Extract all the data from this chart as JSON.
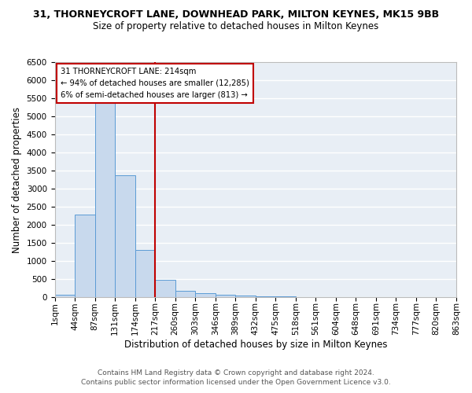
{
  "title_line1": "31, THORNEYCROFT LANE, DOWNHEAD PARK, MILTON KEYNES, MK15 9BB",
  "title_line2": "Size of property relative to detached houses in Milton Keynes",
  "xlabel": "Distribution of detached houses by size in Milton Keynes",
  "ylabel": "Number of detached properties",
  "footnote1": "Contains HM Land Registry data © Crown copyright and database right 2024.",
  "footnote2": "Contains public sector information licensed under the Open Government Licence v3.0.",
  "bin_labels": [
    "1sqm",
    "44sqm",
    "87sqm",
    "131sqm",
    "174sqm",
    "217sqm",
    "260sqm",
    "303sqm",
    "346sqm",
    "389sqm",
    "432sqm",
    "475sqm",
    "518sqm",
    "561sqm",
    "604sqm",
    "648sqm",
    "691sqm",
    "734sqm",
    "777sqm",
    "820sqm",
    "863sqm"
  ],
  "bar_values": [
    75,
    2280,
    5420,
    3380,
    1310,
    470,
    170,
    110,
    75,
    45,
    30,
    15,
    5,
    3,
    2,
    1,
    1,
    1,
    0,
    0
  ],
  "bar_color": "#c8d9ed",
  "bar_edge_color": "#5b9bd5",
  "property_line_bin": 5,
  "annotation_text": "31 THORNEYCROFT LANE: 214sqm\n← 94% of detached houses are smaller (12,285)\n6% of semi-detached houses are larger (813) →",
  "annotation_box_color": "#ffffff",
  "annotation_box_edge_color": "#c00000",
  "ylim": [
    0,
    6500
  ],
  "yticks": [
    0,
    500,
    1000,
    1500,
    2000,
    2500,
    3000,
    3500,
    4000,
    4500,
    5000,
    5500,
    6000,
    6500
  ],
  "plot_bg_color": "#e8eef5",
  "fig_bg_color": "#ffffff",
  "grid_color": "#ffffff",
  "title_fontsize": 9,
  "subtitle_fontsize": 8.5,
  "axis_label_fontsize": 8.5,
  "tick_fontsize": 7.5,
  "footnote_fontsize": 6.5
}
